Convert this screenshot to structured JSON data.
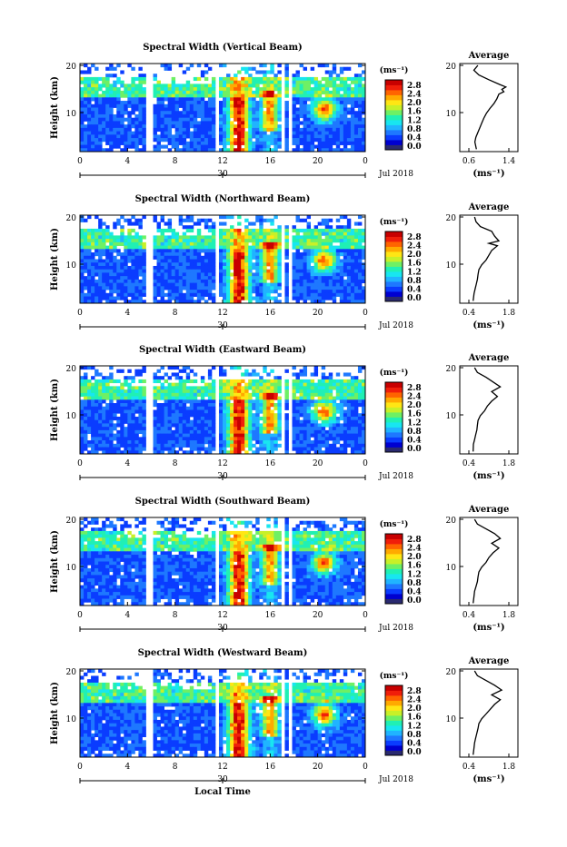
{
  "colors": {
    "colorbar": [
      "#2a2a70",
      "#0000d0",
      "#0a3cff",
      "#1e78ff",
      "#20b4ff",
      "#18e6f0",
      "#20f0b4",
      "#6ef064",
      "#c8f028",
      "#ffe614",
      "#ffaa00",
      "#ff6400",
      "#f01e0a",
      "#c80000"
    ]
  },
  "chart_data": [
    {
      "type": "heatmap",
      "title": "Spectral Width (Vertical Beam)",
      "ylabel": "Height (km)",
      "xlabel": "",
      "yticks": [
        "20",
        "10"
      ],
      "xticks": [
        "0",
        "4",
        "8",
        "12",
        "16",
        "20",
        "0"
      ],
      "date_tick": "30",
      "date_label": "Jul 2018",
      "ylim": [
        2,
        20
      ],
      "xlim": [
        0,
        24
      ],
      "colorbar": {
        "unit": "(ms⁻¹)",
        "ticks": [
          "2.8",
          "2.4",
          "2.0",
          "1.6",
          "1.2",
          "0.8",
          "0.4",
          "0.0"
        ]
      },
      "profile": {
        "title": "Average",
        "xlabel": "(ms⁻¹)",
        "xticks": [
          "0.6",
          "1.4"
        ],
        "yticks": [
          "20",
          "10"
        ],
        "xlim": [
          0.6,
          1.4
        ],
        "height_km": [
          2.5,
          4,
          5,
          6,
          7,
          8,
          9,
          10,
          11,
          12,
          13,
          14,
          14.5,
          15,
          15.5,
          16,
          17,
          18,
          19,
          20
        ],
        "width_ms": [
          0.75,
          0.72,
          0.74,
          0.78,
          0.82,
          0.86,
          0.9,
          0.95,
          1.02,
          1.1,
          1.16,
          1.2,
          1.3,
          1.26,
          1.34,
          1.22,
          1.0,
          0.8,
          0.7,
          0.78
        ]
      }
    },
    {
      "type": "heatmap",
      "title": "Spectral Width (Northward Beam)",
      "ylabel": "Height (km)",
      "xlabel": "",
      "yticks": [
        "20",
        "10"
      ],
      "xticks": [
        "0",
        "4",
        "8",
        "12",
        "16",
        "20",
        "0"
      ],
      "date_tick": "30",
      "date_label": "Jul 2018",
      "ylim": [
        2,
        20
      ],
      "xlim": [
        0,
        24
      ],
      "colorbar": {
        "unit": "(ms⁻¹)",
        "ticks": [
          "2.8",
          "2.4",
          "2.0",
          "1.6",
          "1.2",
          "0.8",
          "0.4",
          "0.0"
        ]
      },
      "profile": {
        "title": "Average",
        "xlabel": "(ms⁻¹)",
        "xticks": [
          "0.4",
          "1.8"
        ],
        "yticks": [
          "20",
          "10"
        ],
        "xlim": [
          0.4,
          1.8
        ],
        "height_km": [
          2.5,
          4,
          5,
          6,
          7,
          8,
          9,
          10,
          11,
          12,
          13,
          14,
          14.5,
          15,
          16,
          17,
          18,
          19,
          20
        ],
        "width_ms": [
          0.55,
          0.58,
          0.62,
          0.66,
          0.7,
          0.72,
          0.75,
          0.85,
          1.0,
          1.1,
          1.2,
          1.4,
          1.1,
          1.45,
          1.3,
          1.2,
          0.8,
          0.65,
          0.6
        ]
      }
    },
    {
      "type": "heatmap",
      "title": "Spectral Width (Eastward Beam)",
      "ylabel": "Height (km)",
      "xlabel": "",
      "yticks": [
        "20",
        "10"
      ],
      "xticks": [
        "0",
        "4",
        "8",
        "12",
        "16",
        "20",
        "0"
      ],
      "date_tick": "30",
      "date_label": "Jul 2018",
      "ylim": [
        2,
        20
      ],
      "xlim": [
        0,
        24
      ],
      "colorbar": {
        "unit": "(ms⁻¹)",
        "ticks": [
          "2.8",
          "2.4",
          "2.0",
          "1.6",
          "1.2",
          "0.8",
          "0.4",
          "0.0"
        ]
      },
      "profile": {
        "title": "Average",
        "xlabel": "(ms⁻¹)",
        "xticks": [
          "0.4",
          "1.8"
        ],
        "yticks": [
          "20",
          "10"
        ],
        "xlim": [
          0.4,
          1.8
        ],
        "height_km": [
          2.5,
          4,
          5,
          6,
          7,
          8,
          9,
          10,
          11,
          12,
          13,
          14,
          15,
          16,
          17,
          18,
          19,
          20
        ],
        "width_ms": [
          0.55,
          0.56,
          0.6,
          0.64,
          0.68,
          0.7,
          0.72,
          0.8,
          0.95,
          1.05,
          1.2,
          1.4,
          1.2,
          1.5,
          1.25,
          1.0,
          0.7,
          0.6
        ]
      }
    },
    {
      "type": "heatmap",
      "title": "Spectral Width (Southward Beam)",
      "ylabel": "Height (km)",
      "xlabel": "",
      "yticks": [
        "20",
        "10"
      ],
      "xticks": [
        "0",
        "4",
        "8",
        "12",
        "16",
        "20",
        "0"
      ],
      "date_tick": "30",
      "date_label": "Jul 2018",
      "ylim": [
        2,
        20
      ],
      "xlim": [
        0,
        24
      ],
      "colorbar": {
        "unit": "(ms⁻¹)",
        "ticks": [
          "2.8",
          "2.4",
          "2.0",
          "1.6",
          "1.2",
          "0.8",
          "0.4",
          "0.0"
        ]
      },
      "profile": {
        "title": "Average",
        "xlabel": "(ms⁻¹)",
        "xticks": [
          "0.4",
          "1.8"
        ],
        "yticks": [
          "20",
          "10"
        ],
        "xlim": [
          0.4,
          1.8
        ],
        "height_km": [
          2.5,
          4,
          5,
          6,
          7,
          8,
          9,
          10,
          11,
          12,
          13,
          14,
          15,
          16,
          17,
          18,
          19,
          20
        ],
        "width_ms": [
          0.55,
          0.58,
          0.6,
          0.65,
          0.7,
          0.72,
          0.75,
          0.85,
          1.0,
          1.1,
          1.25,
          1.45,
          1.2,
          1.5,
          1.3,
          1.0,
          0.7,
          0.6
        ]
      }
    },
    {
      "type": "heatmap",
      "title": "Spectral Width (Westward Beam)",
      "ylabel": "Height (km)",
      "xlabel": "Local Time",
      "yticks": [
        "20",
        "10"
      ],
      "xticks": [
        "0",
        "4",
        "8",
        "12",
        "16",
        "20",
        "0"
      ],
      "date_tick": "30",
      "date_label": "Jul 2018",
      "ylim": [
        2,
        20
      ],
      "xlim": [
        0,
        24
      ],
      "colorbar": {
        "unit": "(ms⁻¹)",
        "ticks": [
          "2.8",
          "2.4",
          "2.0",
          "1.6",
          "1.2",
          "0.8",
          "0.4",
          "0.0"
        ]
      },
      "profile": {
        "title": "Average",
        "xlabel": "(ms⁻¹)",
        "xticks": [
          "0.4",
          "1.8"
        ],
        "yticks": [
          "20",
          "10"
        ],
        "xlim": [
          0.4,
          1.8
        ],
        "height_km": [
          2.5,
          4,
          5,
          6,
          7,
          8,
          9,
          10,
          11,
          12,
          13,
          14,
          15,
          16,
          17,
          18,
          19,
          20
        ],
        "width_ms": [
          0.55,
          0.58,
          0.6,
          0.64,
          0.68,
          0.72,
          0.75,
          0.85,
          1.0,
          1.15,
          1.3,
          1.5,
          1.2,
          1.55,
          1.3,
          1.0,
          0.7,
          0.6
        ]
      }
    }
  ]
}
